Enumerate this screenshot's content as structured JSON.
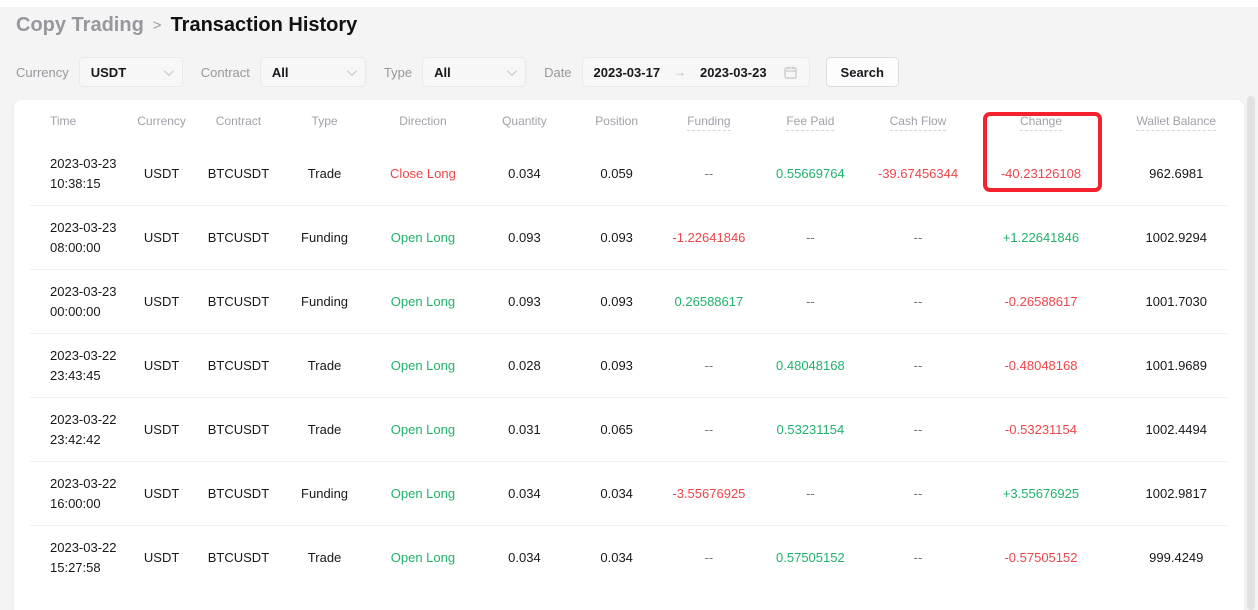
{
  "breadcrumb": {
    "parent": "Copy Trading",
    "separator": ">",
    "current": "Transaction History"
  },
  "filters": {
    "currency_label": "Currency",
    "currency_value": "USDT",
    "contract_label": "Contract",
    "contract_value": "All",
    "type_label": "Type",
    "type_value": "All",
    "date_label": "Date",
    "date_start": "2023-03-17",
    "date_arrow": "→",
    "date_end": "2023-03-23",
    "search_label": "Search"
  },
  "table": {
    "columns": [
      {
        "key": "time",
        "label": "Time",
        "tooltip": false
      },
      {
        "key": "currency",
        "label": "Currency",
        "tooltip": false
      },
      {
        "key": "contract",
        "label": "Contract",
        "tooltip": false
      },
      {
        "key": "type",
        "label": "Type",
        "tooltip": false
      },
      {
        "key": "direction",
        "label": "Direction",
        "tooltip": false
      },
      {
        "key": "quantity",
        "label": "Quantity",
        "tooltip": false
      },
      {
        "key": "position",
        "label": "Position",
        "tooltip": false
      },
      {
        "key": "funding",
        "label": "Funding",
        "tooltip": true
      },
      {
        "key": "fee_paid",
        "label": "Fee Paid",
        "tooltip": true
      },
      {
        "key": "cash_flow",
        "label": "Cash Flow",
        "tooltip": true
      },
      {
        "key": "change",
        "label": "Change",
        "tooltip": true
      },
      {
        "key": "wallet_balance",
        "label": "Wallet Balance",
        "tooltip": true
      }
    ],
    "rows": [
      {
        "time": {
          "date": "2023-03-23",
          "clock": "10:38:15"
        },
        "currency": {
          "text": "USDT"
        },
        "contract": {
          "text": "BTCUSDT"
        },
        "type": {
          "text": "Trade"
        },
        "direction": {
          "text": "Close Long",
          "color": "negative"
        },
        "quantity": {
          "text": "0.034"
        },
        "position": {
          "text": "0.059"
        },
        "funding": {
          "text": "--",
          "color": "muted"
        },
        "fee_paid": {
          "text": "0.55669764",
          "color": "positive"
        },
        "cash_flow": {
          "text": "-39.67456344",
          "color": "negative"
        },
        "change": {
          "text": "-40.23126108",
          "color": "negative"
        },
        "wallet_balance": {
          "text": "962.6981"
        }
      },
      {
        "time": {
          "date": "2023-03-23",
          "clock": "08:00:00"
        },
        "currency": {
          "text": "USDT"
        },
        "contract": {
          "text": "BTCUSDT"
        },
        "type": {
          "text": "Funding"
        },
        "direction": {
          "text": "Open Long",
          "color": "positive"
        },
        "quantity": {
          "text": "0.093"
        },
        "position": {
          "text": "0.093"
        },
        "funding": {
          "text": "-1.22641846",
          "color": "negative"
        },
        "fee_paid": {
          "text": "--",
          "color": "muted"
        },
        "cash_flow": {
          "text": "--",
          "color": "muted"
        },
        "change": {
          "text": "+1.22641846",
          "color": "positive"
        },
        "wallet_balance": {
          "text": "1002.9294"
        }
      },
      {
        "time": {
          "date": "2023-03-23",
          "clock": "00:00:00"
        },
        "currency": {
          "text": "USDT"
        },
        "contract": {
          "text": "BTCUSDT"
        },
        "type": {
          "text": "Funding"
        },
        "direction": {
          "text": "Open Long",
          "color": "positive"
        },
        "quantity": {
          "text": "0.093"
        },
        "position": {
          "text": "0.093"
        },
        "funding": {
          "text": "0.26588617",
          "color": "positive"
        },
        "fee_paid": {
          "text": "--",
          "color": "muted"
        },
        "cash_flow": {
          "text": "--",
          "color": "muted"
        },
        "change": {
          "text": "-0.26588617",
          "color": "negative"
        },
        "wallet_balance": {
          "text": "1001.7030"
        }
      },
      {
        "time": {
          "date": "2023-03-22",
          "clock": "23:43:45"
        },
        "currency": {
          "text": "USDT"
        },
        "contract": {
          "text": "BTCUSDT"
        },
        "type": {
          "text": "Trade"
        },
        "direction": {
          "text": "Open Long",
          "color": "positive"
        },
        "quantity": {
          "text": "0.028"
        },
        "position": {
          "text": "0.093"
        },
        "funding": {
          "text": "--",
          "color": "muted"
        },
        "fee_paid": {
          "text": "0.48048168",
          "color": "positive"
        },
        "cash_flow": {
          "text": "--",
          "color": "muted"
        },
        "change": {
          "text": "-0.48048168",
          "color": "negative"
        },
        "wallet_balance": {
          "text": "1001.9689"
        }
      },
      {
        "time": {
          "date": "2023-03-22",
          "clock": "23:42:42"
        },
        "currency": {
          "text": "USDT"
        },
        "contract": {
          "text": "BTCUSDT"
        },
        "type": {
          "text": "Trade"
        },
        "direction": {
          "text": "Open Long",
          "color": "positive"
        },
        "quantity": {
          "text": "0.031"
        },
        "position": {
          "text": "0.065"
        },
        "funding": {
          "text": "--",
          "color": "muted"
        },
        "fee_paid": {
          "text": "0.53231154",
          "color": "positive"
        },
        "cash_flow": {
          "text": "--",
          "color": "muted"
        },
        "change": {
          "text": "-0.53231154",
          "color": "negative"
        },
        "wallet_balance": {
          "text": "1002.4494"
        }
      },
      {
        "time": {
          "date": "2023-03-22",
          "clock": "16:00:00"
        },
        "currency": {
          "text": "USDT"
        },
        "contract": {
          "text": "BTCUSDT"
        },
        "type": {
          "text": "Funding"
        },
        "direction": {
          "text": "Open Long",
          "color": "positive"
        },
        "quantity": {
          "text": "0.034"
        },
        "position": {
          "text": "0.034"
        },
        "funding": {
          "text": "-3.55676925",
          "color": "negative"
        },
        "fee_paid": {
          "text": "--",
          "color": "muted"
        },
        "cash_flow": {
          "text": "--",
          "color": "muted"
        },
        "change": {
          "text": "+3.55676925",
          "color": "positive"
        },
        "wallet_balance": {
          "text": "1002.9817"
        }
      },
      {
        "time": {
          "date": "2023-03-22",
          "clock": "15:27:58"
        },
        "currency": {
          "text": "USDT"
        },
        "contract": {
          "text": "BTCUSDT"
        },
        "type": {
          "text": "Trade"
        },
        "direction": {
          "text": "Open Long",
          "color": "positive"
        },
        "quantity": {
          "text": "0.034"
        },
        "position": {
          "text": "0.034"
        },
        "funding": {
          "text": "--",
          "color": "muted"
        },
        "fee_paid": {
          "text": "0.57505152",
          "color": "positive"
        },
        "cash_flow": {
          "text": "--",
          "color": "muted"
        },
        "change": {
          "text": "-0.57505152",
          "color": "negative"
        },
        "wallet_balance": {
          "text": "999.4249"
        }
      }
    ]
  },
  "annotation": {
    "shape": "rectangle",
    "target_column": "Change",
    "covers": "Change header and first-row value -40.23126108"
  },
  "colors": {
    "positive": "#20b26c",
    "negative": "#ef454a",
    "annotation": "#f5222d"
  }
}
